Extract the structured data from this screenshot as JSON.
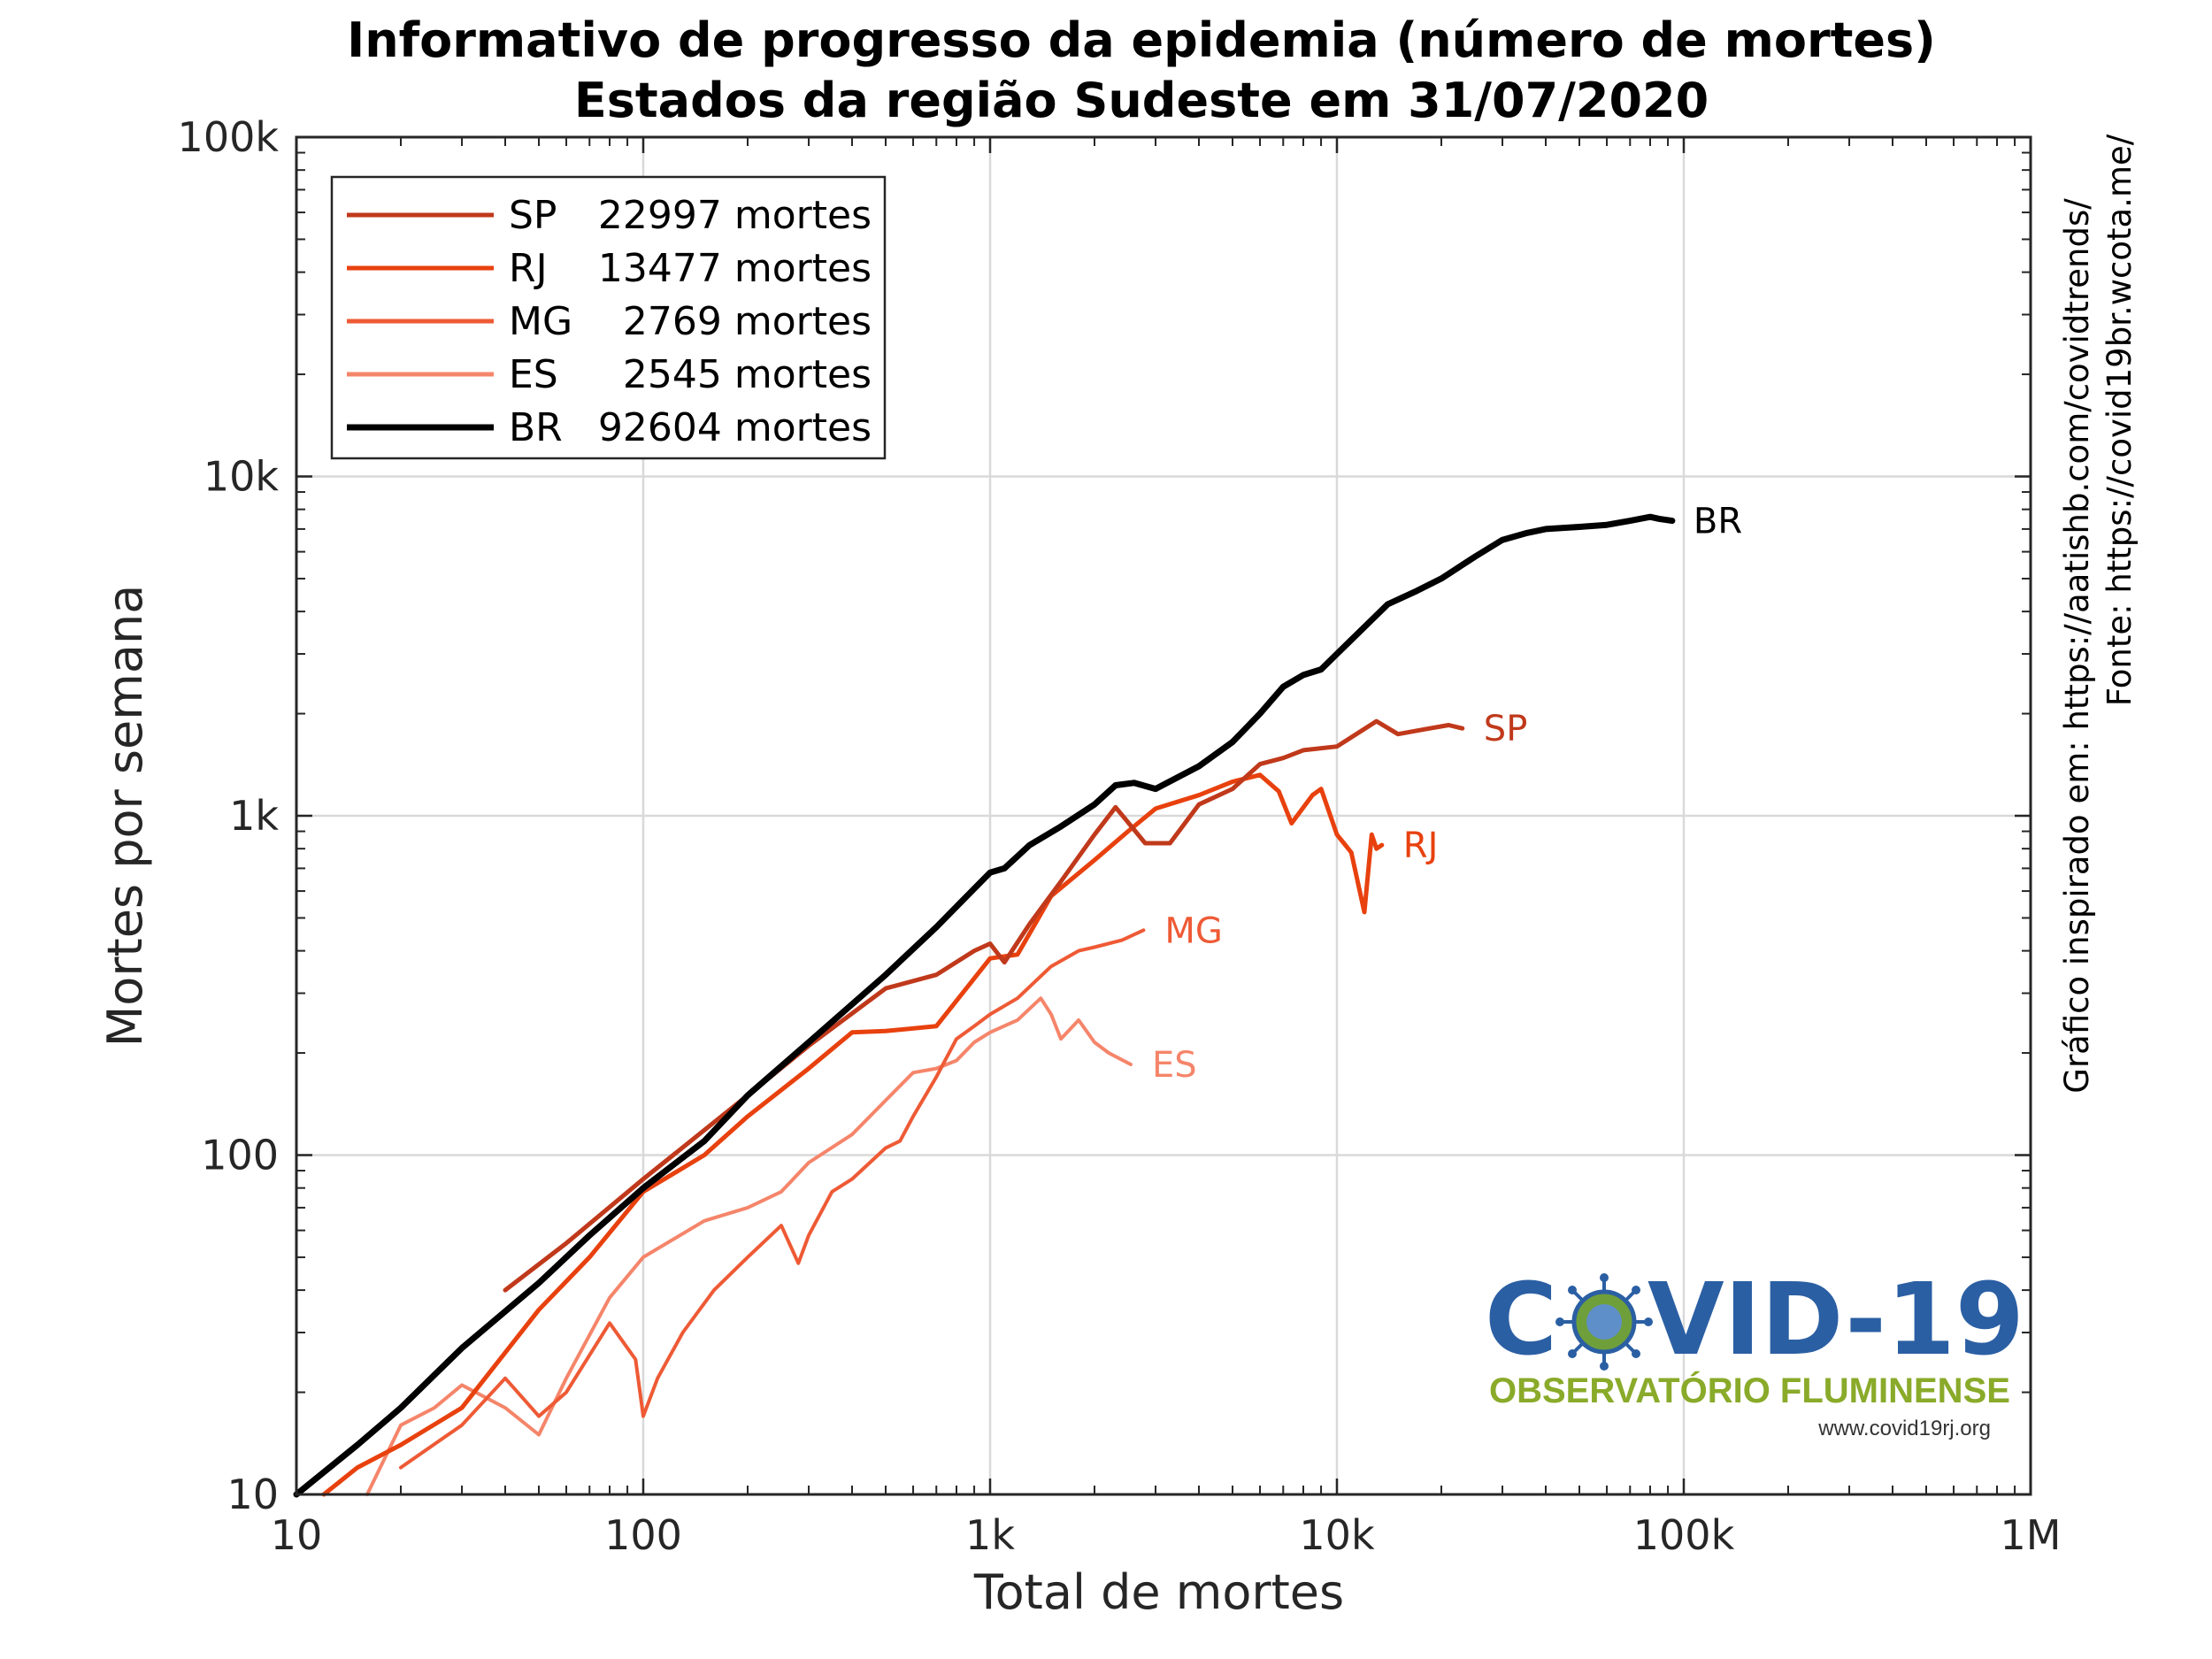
{
  "title_line1": "Informativo de progresso da epidemia (número de mortes)",
  "title_line2": "Estados da região Sudeste em 31/07/2020",
  "credit_line1": "Gráfico inspirado em: https://aatishb.com/covidtrends/",
  "credit_line2": "Fonte: https://covid19br.wcota.me/",
  "logo": {
    "main_left": "C",
    "main_right": "VID-19",
    "subtitle": "OBSERVATÓRIO FLUMINENSE",
    "url": "www.covid19rj.org",
    "main_color": "#2b5fa3",
    "subtitle_color": "#8aaa2a"
  },
  "chart_data": {
    "type": "line",
    "xlabel": "Total de mortes",
    "ylabel": "Mortes por semana",
    "xscale": "log",
    "yscale": "log",
    "xlim": [
      10,
      1000000
    ],
    "ylim": [
      10,
      100000
    ],
    "xticks": [
      10,
      100,
      1000,
      10000,
      100000,
      1000000
    ],
    "xtick_labels": [
      "10",
      "100",
      "1k",
      "10k",
      "100k",
      "1M"
    ],
    "yticks": [
      10,
      100,
      1000,
      10000,
      100000
    ],
    "ytick_labels": [
      "10",
      "100",
      "1k",
      "10k",
      "100k"
    ],
    "grid": true,
    "legend_position": "top-left",
    "legend": [
      {
        "code": "SP",
        "count": "22997 mortes",
        "color": "#c0391b"
      },
      {
        "code": "RJ",
        "count": "13477 mortes",
        "color": "#e8410e"
      },
      {
        "code": "MG",
        "count": "2769 mortes",
        "color": "#ee5a35"
      },
      {
        "code": "ES",
        "count": "2545 mortes",
        "color": "#f5856a"
      },
      {
        "code": "BR",
        "count": "92604 mortes",
        "color": "#000000"
      }
    ],
    "series": [
      {
        "name": "SP",
        "color": "#c0391b",
        "width": 5,
        "points": [
          [
            40,
            40
          ],
          [
            60,
            55
          ],
          [
            100,
            85
          ],
          [
            200,
            150
          ],
          [
            300,
            210
          ],
          [
            500,
            310
          ],
          [
            700,
            340
          ],
          [
            900,
            400
          ],
          [
            1000,
            420
          ],
          [
            1100,
            370
          ],
          [
            1300,
            480
          ],
          [
            1600,
            640
          ],
          [
            2000,
            880
          ],
          [
            2300,
            1060
          ],
          [
            2800,
            830
          ],
          [
            3300,
            830
          ],
          [
            4000,
            1080
          ],
          [
            5000,
            1200
          ],
          [
            6000,
            1420
          ],
          [
            7000,
            1480
          ],
          [
            8000,
            1560
          ],
          [
            10000,
            1600
          ],
          [
            13000,
            1900
          ],
          [
            15000,
            1740
          ],
          [
            18000,
            1800
          ],
          [
            21000,
            1850
          ],
          [
            23000,
            1810
          ]
        ]
      },
      {
        "name": "RJ",
        "color": "#e8410e",
        "width": 5,
        "points": [
          [
            12,
            10
          ],
          [
            15,
            12
          ],
          [
            20,
            14
          ],
          [
            30,
            18
          ],
          [
            50,
            35
          ],
          [
            70,
            50
          ],
          [
            100,
            78
          ],
          [
            150,
            100
          ],
          [
            200,
            130
          ],
          [
            300,
            180
          ],
          [
            400,
            230
          ],
          [
            500,
            232
          ],
          [
            700,
            240
          ],
          [
            1000,
            380
          ],
          [
            1200,
            390
          ],
          [
            1500,
            580
          ],
          [
            2000,
            740
          ],
          [
            2500,
            900
          ],
          [
            3000,
            1050
          ],
          [
            4000,
            1150
          ],
          [
            5000,
            1260
          ],
          [
            6000,
            1320
          ],
          [
            6800,
            1180
          ],
          [
            7400,
            950
          ],
          [
            8500,
            1150
          ],
          [
            9000,
            1200
          ],
          [
            10000,
            880
          ],
          [
            11000,
            780
          ],
          [
            12000,
            520
          ],
          [
            12600,
            880
          ],
          [
            13000,
            800
          ],
          [
            13477,
            820
          ]
        ]
      },
      {
        "name": "MG",
        "color": "#ee5a35",
        "width": 4,
        "points": [
          [
            20,
            12
          ],
          [
            30,
            16
          ],
          [
            40,
            22
          ],
          [
            50,
            17
          ],
          [
            60,
            20
          ],
          [
            80,
            32
          ],
          [
            95,
            25
          ],
          [
            100,
            17
          ],
          [
            110,
            22
          ],
          [
            130,
            30
          ],
          [
            160,
            40
          ],
          [
            200,
            50
          ],
          [
            250,
            62
          ],
          [
            280,
            48
          ],
          [
            300,
            58
          ],
          [
            350,
            78
          ],
          [
            400,
            85
          ],
          [
            450,
            95
          ],
          [
            500,
            105
          ],
          [
            550,
            110
          ],
          [
            600,
            130
          ],
          [
            700,
            170
          ],
          [
            800,
            220
          ],
          [
            900,
            240
          ],
          [
            1000,
            260
          ],
          [
            1200,
            290
          ],
          [
            1500,
            360
          ],
          [
            1800,
            400
          ],
          [
            2000,
            410
          ],
          [
            2400,
            430
          ],
          [
            2769,
            460
          ]
        ]
      },
      {
        "name": "ES",
        "color": "#f5856a",
        "width": 4,
        "points": [
          [
            16,
            10
          ],
          [
            20,
            16
          ],
          [
            25,
            18
          ],
          [
            30,
            21
          ],
          [
            40,
            18
          ],
          [
            50,
            15
          ],
          [
            60,
            22
          ],
          [
            80,
            38
          ],
          [
            100,
            50
          ],
          [
            150,
            64
          ],
          [
            200,
            70
          ],
          [
            250,
            78
          ],
          [
            300,
            95
          ],
          [
            400,
            115
          ],
          [
            500,
            145
          ],
          [
            600,
            175
          ],
          [
            700,
            180
          ],
          [
            800,
            190
          ],
          [
            900,
            215
          ],
          [
            1000,
            230
          ],
          [
            1200,
            250
          ],
          [
            1400,
            290
          ],
          [
            1500,
            260
          ],
          [
            1600,
            220
          ],
          [
            1800,
            250
          ],
          [
            2000,
            215
          ],
          [
            2200,
            200
          ],
          [
            2545,
            185
          ]
        ]
      },
      {
        "name": "BR",
        "color": "#000000",
        "width": 7,
        "points": [
          [
            10,
            10
          ],
          [
            15,
            14
          ],
          [
            20,
            18
          ],
          [
            30,
            27
          ],
          [
            50,
            42
          ],
          [
            70,
            58
          ],
          [
            100,
            80
          ],
          [
            150,
            110
          ],
          [
            200,
            150
          ],
          [
            300,
            215
          ],
          [
            500,
            340
          ],
          [
            700,
            470
          ],
          [
            900,
            610
          ],
          [
            1000,
            680
          ],
          [
            1100,
            700
          ],
          [
            1300,
            820
          ],
          [
            1600,
            930
          ],
          [
            2000,
            1080
          ],
          [
            2300,
            1230
          ],
          [
            2600,
            1250
          ],
          [
            3000,
            1200
          ],
          [
            4000,
            1400
          ],
          [
            5000,
            1650
          ],
          [
            6000,
            2000
          ],
          [
            7000,
            2400
          ],
          [
            8000,
            2600
          ],
          [
            9000,
            2700
          ],
          [
            10000,
            3000
          ],
          [
            12000,
            3600
          ],
          [
            14000,
            4200
          ],
          [
            17000,
            4600
          ],
          [
            20000,
            5000
          ],
          [
            25000,
            5800
          ],
          [
            30000,
            6500
          ],
          [
            35000,
            6800
          ],
          [
            40000,
            7000
          ],
          [
            50000,
            7100
          ],
          [
            60000,
            7200
          ],
          [
            70000,
            7400
          ],
          [
            80000,
            7600
          ],
          [
            85000,
            7500
          ],
          [
            92604,
            7400
          ]
        ]
      }
    ]
  }
}
